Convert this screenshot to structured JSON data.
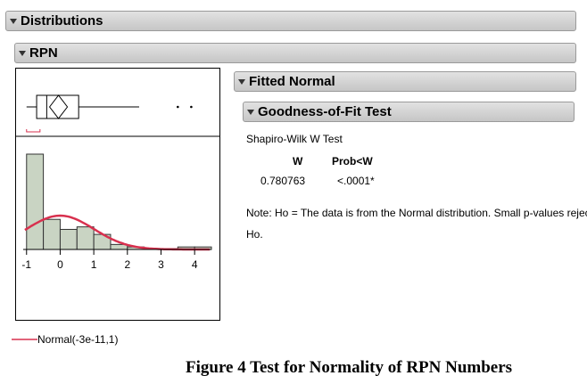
{
  "headers": {
    "distributions": "Distributions",
    "rpn": "RPN",
    "fitted_normal": "Fitted Normal",
    "goodness_of_fit": "Goodness-of-Fit Test"
  },
  "test": {
    "name": "Shapiro-Wilk W Test",
    "col_w": "W",
    "col_prob": "Prob<W",
    "w_value": "0.780763",
    "prob_value": "<.0001*",
    "note_line1": "Note: Ho = The data is from the Normal distribution. Small p-values reject",
    "note_line2": "Ho."
  },
  "legend": {
    "label": "Normal(-3e-11,1)",
    "color": "#d8304e"
  },
  "caption": "Figure 4 Test for Normality of RPN Numbers",
  "chart_data": {
    "type": "bar",
    "histogram_bins": [
      {
        "from": -1.0,
        "to": -0.5,
        "count": 38
      },
      {
        "from": -0.5,
        "to": 0.0,
        "count": 12
      },
      {
        "from": 0.0,
        "to": 0.5,
        "count": 8
      },
      {
        "from": 0.5,
        "to": 1.0,
        "count": 9
      },
      {
        "from": 1.0,
        "to": 1.5,
        "count": 6
      },
      {
        "from": 1.5,
        "to": 2.0,
        "count": 2
      },
      {
        "from": 2.0,
        "to": 2.5,
        "count": 1
      },
      {
        "from": 2.5,
        "to": 3.0,
        "count": 0.3
      },
      {
        "from": 3.0,
        "to": 3.5,
        "count": 0.3
      },
      {
        "from": 3.5,
        "to": 4.0,
        "count": 1
      },
      {
        "from": 4.0,
        "to": 4.5,
        "count": 1
      }
    ],
    "x_ticks": [
      -1,
      0,
      1,
      2,
      3,
      4
    ],
    "xlim": [
      -1.1,
      4.5
    ],
    "bar_color": "#c9d4c3",
    "boxplot": {
      "min": -1.0,
      "q1": -0.7,
      "median": -0.4,
      "mean": -0.05,
      "q3": 0.55,
      "whisker_high": 2.35,
      "outliers": [
        3.5,
        3.9
      ]
    },
    "normal_curve": {
      "mu": 0,
      "sigma": 1,
      "color": "#d8304e"
    }
  }
}
